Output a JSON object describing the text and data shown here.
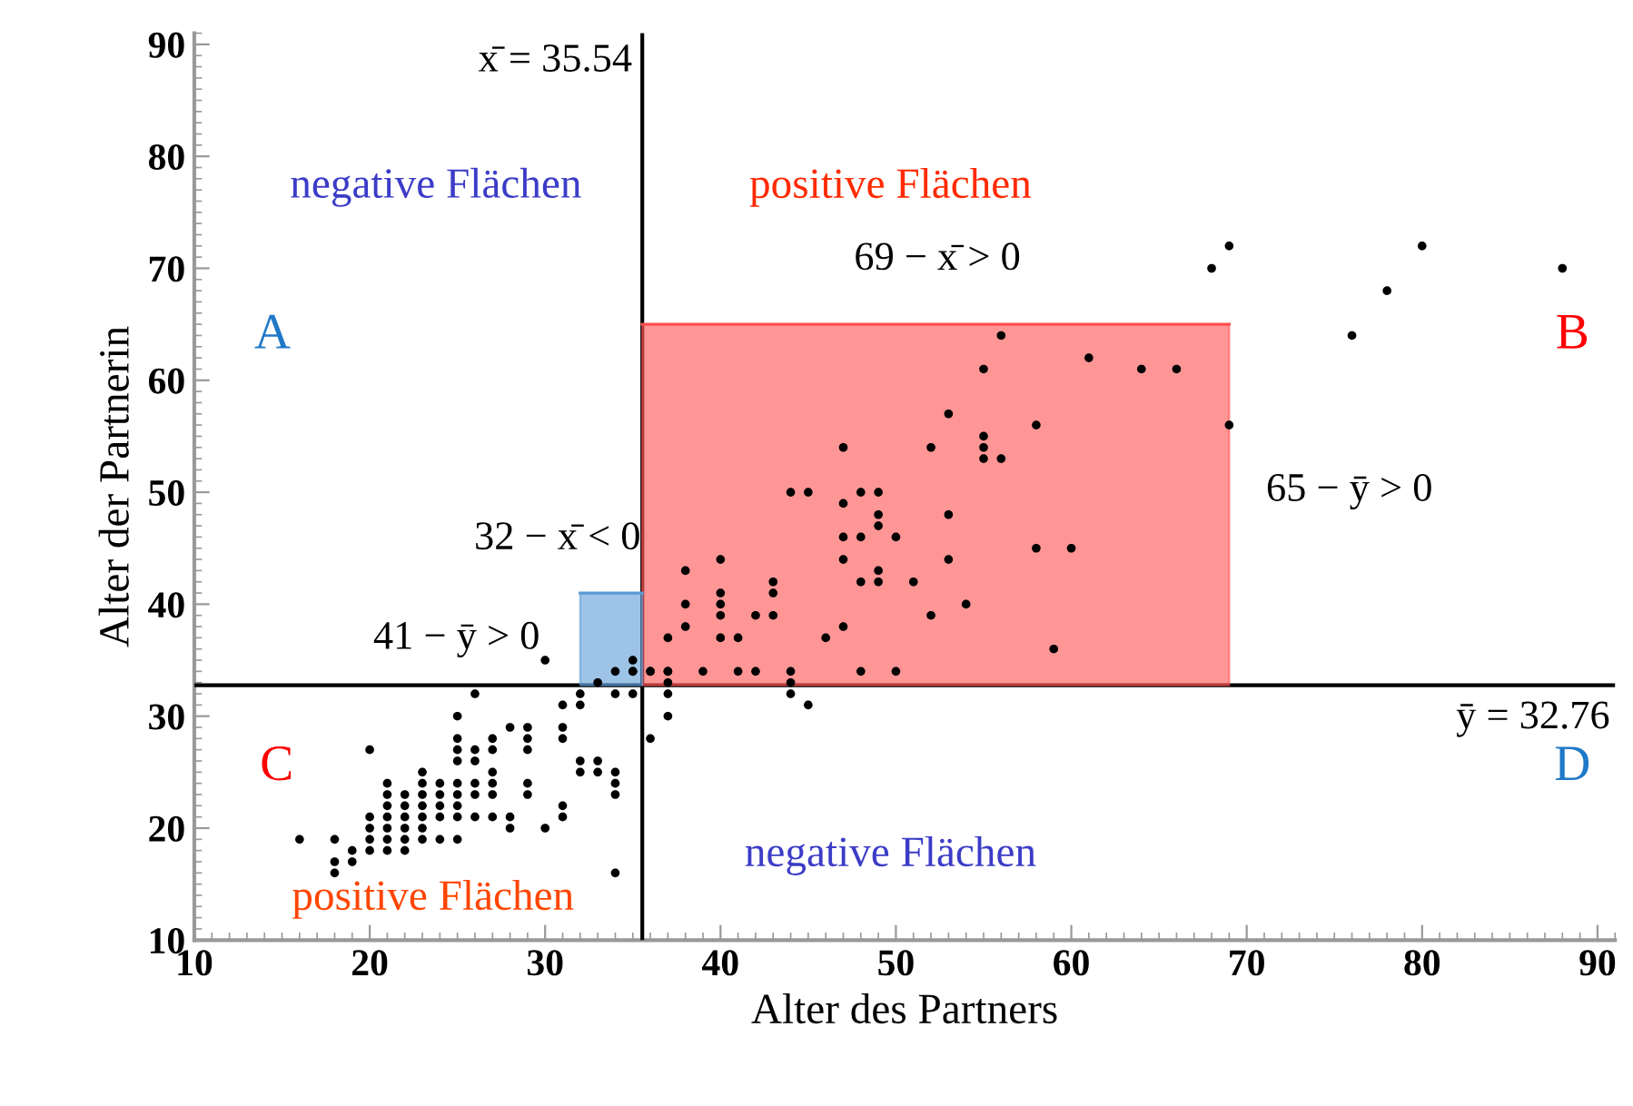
{
  "chart_data": {
    "type": "scatter",
    "series": [
      {
        "type": "line",
        "marker": "none",
        "color": "#ff5050",
        "x": [
          35.54,
          69
        ],
        "values": [
          65,
          65
        ],
        "lower": [
          32.76,
          32.76
        ],
        "upper": [
          65,
          65
        ]
      },
      {
        "type": "line",
        "marker": "none",
        "color": "#5b9bd5",
        "x": [
          32,
          35.54
        ],
        "values": [
          41,
          41
        ],
        "lower": [
          32.76,
          32.76
        ],
        "upper": [
          41,
          41
        ]
      }
    ],
    "xlabel": "Alter des Partners",
    "ylabel": "Alter der Partnerin",
    "x": [
      56,
      61,
      55,
      64,
      66,
      53,
      58,
      69,
      47,
      52,
      55,
      55,
      55,
      56,
      44,
      45,
      48,
      49,
      47,
      49,
      53,
      49,
      47,
      48,
      50,
      40,
      47,
      53,
      58,
      60,
      38,
      49,
      43,
      48,
      49,
      51,
      40,
      43,
      38,
      40,
      54,
      40,
      42,
      43,
      52,
      38,
      47,
      37,
      40,
      41,
      46,
      59,
      35,
      36,
      37,
      39,
      41,
      42,
      44,
      48,
      50,
      37,
      44,
      68,
      69,
      80,
      78,
      88,
      76,
      30,
      35,
      34,
      35,
      33,
      26,
      34,
      35,
      32,
      32,
      31,
      25,
      20,
      25,
      25,
      25,
      26,
      26,
      27,
      27,
      28,
      29,
      29,
      29,
      31,
      31,
      32,
      32,
      33,
      33,
      34,
      34,
      34,
      21,
      21,
      21,
      21,
      21,
      21,
      21,
      20,
      20,
      20,
      20,
      22,
      22,
      22,
      22,
      22,
      22,
      23,
      23,
      23,
      23,
      23,
      23,
      23,
      24,
      24,
      24,
      24,
      24,
      25,
      25,
      25,
      25,
      25,
      26,
      26,
      26,
      27,
      27,
      27,
      27,
      28,
      28,
      29,
      29,
      30,
      31,
      31,
      16,
      18,
      18,
      18,
      19,
      19,
      34,
      36,
      37,
      37,
      36,
      37,
      44,
      45
    ],
    "values": [
      64,
      62,
      61,
      61,
      61,
      57,
      56,
      56,
      54,
      54,
      55,
      54,
      53,
      53,
      50,
      50,
      50,
      50,
      49,
      48,
      48,
      47,
      46,
      46,
      46,
      44,
      44,
      44,
      45,
      45,
      43,
      43,
      42,
      42,
      42,
      42,
      41,
      41,
      40,
      40,
      40,
      39,
      39,
      39,
      39,
      38,
      38,
      37,
      37,
      37,
      37,
      36,
      34,
      34,
      34,
      34,
      34,
      34,
      34,
      34,
      34,
      33,
      33,
      70,
      72,
      72,
      68,
      70,
      64,
      35,
      35,
      34,
      34,
      33,
      32,
      32,
      32,
      32,
      31,
      31,
      30,
      27,
      28,
      27,
      26,
      27,
      26,
      28,
      27,
      29,
      29,
      28,
      27,
      29,
      28,
      26,
      25,
      26,
      25,
      25,
      24,
      23,
      24,
      23,
      22,
      21,
      20,
      19,
      18,
      21,
      20,
      19,
      18,
      23,
      22,
      21,
      20,
      19,
      18,
      25,
      24,
      23,
      22,
      21,
      20,
      19,
      24,
      23,
      22,
      21,
      19,
      24,
      23,
      22,
      21,
      19,
      24,
      23,
      21,
      25,
      24,
      23,
      21,
      21,
      20,
      24,
      23,
      20,
      22,
      21,
      19,
      19,
      17,
      16,
      18,
      17,
      16,
      28,
      30,
      32,
      34,
      34,
      32,
      31
    ],
    "color": "#000000",
    "marker": "circle",
    "xlim": [
      10,
      91
    ],
    "ylim": [
      10,
      91
    ],
    "xticks": [
      10,
      20,
      30,
      40,
      50,
      60,
      70,
      80,
      90
    ],
    "yticks": [
      10,
      20,
      30,
      40,
      50,
      60,
      70,
      80,
      90
    ],
    "grid": false,
    "legend": false,
    "ref_lines": [
      {
        "axis": "x",
        "value": 35.54,
        "label": "x̄ = 35.54",
        "color": "#000000"
      },
      {
        "axis": "y",
        "value": 32.76,
        "label": "ȳ = 32.76",
        "color": "#000000"
      }
    ],
    "annotations": [
      "negative Flächen",
      "positive Flächen",
      "A",
      "B",
      "C",
      "D",
      "positive Flächen",
      "negative Flächen",
      "69 − x̄ > 0",
      "65 − ȳ > 0",
      {
        "text": "32 − x̄ < 0",
        "x": 32,
        "y": 41
      },
      {
        "text": "41 − ȳ > 0",
        "x": 32,
        "y": 41
      }
    ]
  }
}
